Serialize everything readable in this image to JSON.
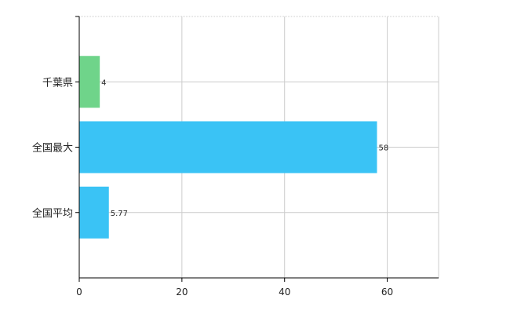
{
  "chart_data": {
    "type": "bar",
    "orientation": "horizontal",
    "categories": [
      "千葉県",
      "全国最大",
      "全国平均"
    ],
    "values": [
      4,
      58,
      5.77
    ],
    "value_labels": [
      "4",
      "58",
      "5.77"
    ],
    "colors": [
      "#6fd48a",
      "#3ac3f5",
      "#3ac3f5"
    ],
    "xlim": [
      0,
      70
    ],
    "xticks": [
      0,
      20,
      40,
      60
    ],
    "grid": true,
    "title": "",
    "xlabel": "",
    "ylabel": ""
  }
}
